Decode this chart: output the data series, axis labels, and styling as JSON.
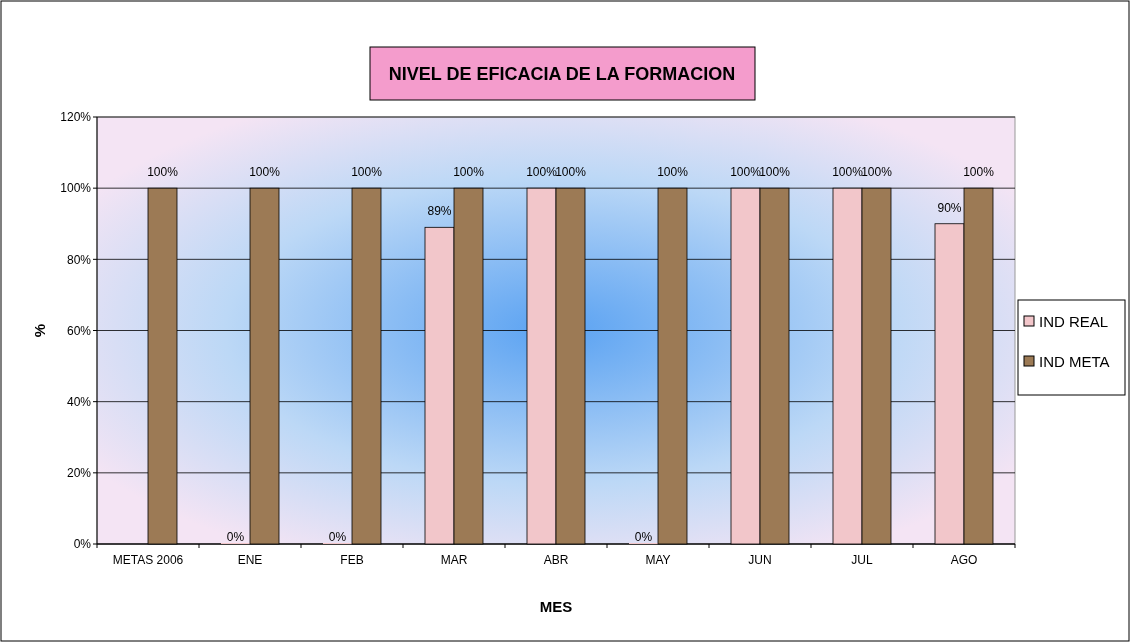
{
  "chart_data": {
    "type": "bar",
    "title": "NIVEL DE EFICACIA DE LA FORMACION",
    "xlabel": "MES",
    "ylabel": "%",
    "categories": [
      "METAS 2006",
      "ENE",
      "FEB",
      "MAR",
      "ABR",
      "MAY",
      "JUN",
      "JUL",
      "AGO"
    ],
    "series": [
      {
        "name": "IND REAL",
        "color": "#f2c6ca",
        "values": [
          null,
          0,
          0,
          89,
          100,
          0,
          100,
          100,
          90
        ],
        "value_labels": [
          null,
          "0%",
          "0%",
          "89%",
          "100%",
          "0%",
          "100%",
          "100%",
          "90%"
        ]
      },
      {
        "name": "IND META",
        "color": "#9c7a55",
        "values": [
          100,
          100,
          100,
          100,
          100,
          100,
          100,
          100,
          100
        ],
        "value_labels": [
          "100%",
          "100%",
          "100%",
          "100%",
          "100%",
          "100%",
          "100%",
          "100%",
          "100%"
        ]
      }
    ],
    "ylim": [
      0,
      120
    ],
    "yticks": [
      {
        "value": 0,
        "label": "0%"
      },
      {
        "value": 20,
        "label": "20%"
      },
      {
        "value": 40,
        "label": "40%"
      },
      {
        "value": 60,
        "label": "60%"
      },
      {
        "value": 80,
        "label": "80%"
      },
      {
        "value": 100,
        "label": "100%"
      },
      {
        "value": 120,
        "label": "120%"
      }
    ],
    "grid": "y",
    "legend": "right"
  }
}
